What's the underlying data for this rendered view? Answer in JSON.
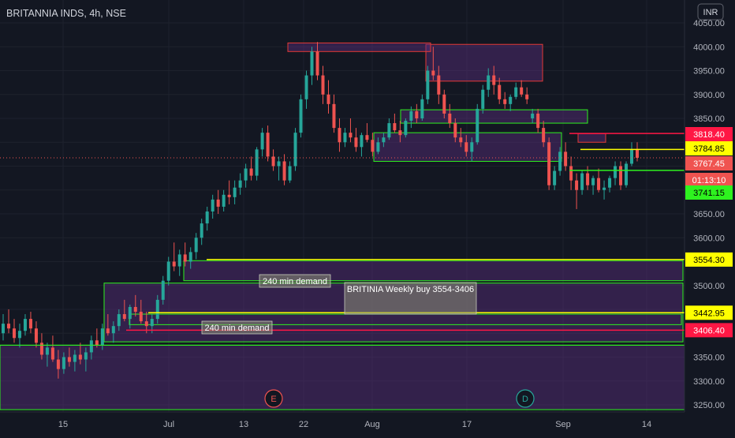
{
  "header": {
    "symbol": "BRITANNIA INDS",
    "interval": "4h",
    "exchange": "NSE",
    "currency": "INR"
  },
  "chart_data": {
    "type": "candlestick",
    "ylim": [
      3240,
      4060
    ],
    "y_ticks": [
      "3250.00",
      "3300.00",
      "3350.00",
      "3400.00",
      "3450.00",
      "3500.00",
      "3550.00",
      "3600.00",
      "3650.00",
      "3700.00",
      "3750.00",
      "3800.00",
      "3850.00",
      "3900.00",
      "3950.00",
      "4000.00",
      "4050.00"
    ],
    "x_ticks": [
      "15",
      "Jul",
      "13",
      "22",
      "Aug",
      "17",
      "Sep",
      "14"
    ],
    "colors": {
      "up": "#26a69a",
      "down": "#ef5350",
      "zone_fill": "#5c2e7e",
      "green_line": "#2ef21f",
      "yellow_line": "#ffff00",
      "red_line": "#ff1744",
      "zone_border_red": "#e53935"
    },
    "price_labels": [
      {
        "value": 3818.4,
        "text": "3818.40",
        "bg": "#ff1744",
        "fg": "#ffffff"
      },
      {
        "value": 3784.85,
        "text": "3784.85",
        "bg": "#ffff00",
        "fg": "#000000"
      },
      {
        "value": 3767.45,
        "text": "3767.45",
        "bg": "#ef5350",
        "fg": "#ffffff"
      },
      {
        "value": 3741.15,
        "text": "3741.15",
        "bg": "#2ef21f",
        "fg": "#000000"
      },
      {
        "value": 3554.3,
        "text": "3554.30",
        "bg": "#ffff00",
        "fg": "#000000"
      },
      {
        "value": 3442.95,
        "text": "3442.95",
        "bg": "#ffff00",
        "fg": "#000000"
      },
      {
        "value": 3406.4,
        "text": "3406.40",
        "bg": "#ff1744",
        "fg": "#ffffff"
      }
    ],
    "countdown": {
      "value": 3713,
      "text": "01:13:10"
    },
    "annotations": [
      {
        "text": "240 min demand"
      },
      {
        "text": "BRITINIA Weekly buy 3554-3406"
      },
      {
        "text": "240 min demand"
      }
    ],
    "events": [
      "E",
      "D"
    ],
    "candles": [
      [
        3400,
        3440,
        3385,
        3420
      ],
      [
        3420,
        3450,
        3400,
        3410
      ],
      [
        3410,
        3430,
        3380,
        3390
      ],
      [
        3390,
        3420,
        3370,
        3405
      ],
      [
        3405,
        3440,
        3395,
        3430
      ],
      [
        3430,
        3445,
        3400,
        3410
      ],
      [
        3410,
        3425,
        3370,
        3380
      ],
      [
        3380,
        3400,
        3345,
        3355
      ],
      [
        3355,
        3380,
        3330,
        3370
      ],
      [
        3370,
        3395,
        3340,
        3345
      ],
      [
        3345,
        3365,
        3305,
        3325
      ],
      [
        3325,
        3360,
        3315,
        3350
      ],
      [
        3350,
        3370,
        3330,
        3340
      ],
      [
        3340,
        3365,
        3320,
        3355
      ],
      [
        3355,
        3380,
        3335,
        3345
      ],
      [
        3345,
        3370,
        3320,
        3360
      ],
      [
        3360,
        3395,
        3345,
        3385
      ],
      [
        3385,
        3410,
        3370,
        3375
      ],
      [
        3375,
        3420,
        3365,
        3410
      ],
      [
        3410,
        3440,
        3395,
        3400
      ],
      [
        3400,
        3425,
        3380,
        3415
      ],
      [
        3415,
        3450,
        3405,
        3440
      ],
      [
        3440,
        3470,
        3425,
        3430
      ],
      [
        3430,
        3460,
        3410,
        3455
      ],
      [
        3455,
        3480,
        3435,
        3445
      ],
      [
        3445,
        3470,
        3420,
        3425
      ],
      [
        3425,
        3445,
        3400,
        3415
      ],
      [
        3415,
        3440,
        3400,
        3430
      ],
      [
        3430,
        3480,
        3420,
        3470
      ],
      [
        3470,
        3520,
        3460,
        3510
      ],
      [
        3510,
        3560,
        3500,
        3550
      ],
      [
        3550,
        3590,
        3530,
        3540
      ],
      [
        3540,
        3575,
        3520,
        3565
      ],
      [
        3565,
        3590,
        3540,
        3550
      ],
      [
        3550,
        3580,
        3535,
        3570
      ],
      [
        3570,
        3610,
        3555,
        3600
      ],
      [
        3600,
        3640,
        3585,
        3630
      ],
      [
        3630,
        3665,
        3615,
        3655
      ],
      [
        3655,
        3690,
        3640,
        3680
      ],
      [
        3680,
        3700,
        3650,
        3665
      ],
      [
        3665,
        3700,
        3655,
        3690
      ],
      [
        3690,
        3720,
        3670,
        3685
      ],
      [
        3685,
        3720,
        3670,
        3705
      ],
      [
        3705,
        3735,
        3690,
        3720
      ],
      [
        3720,
        3755,
        3705,
        3745
      ],
      [
        3745,
        3770,
        3720,
        3730
      ],
      [
        3730,
        3790,
        3720,
        3785
      ],
      [
        3785,
        3830,
        3770,
        3820
      ],
      [
        3820,
        3835,
        3760,
        3770
      ],
      [
        3770,
        3785,
        3740,
        3750
      ],
      [
        3750,
        3770,
        3720,
        3760
      ],
      [
        3760,
        3775,
        3710,
        3720
      ],
      [
        3720,
        3760,
        3715,
        3750
      ],
      [
        3750,
        3830,
        3740,
        3820
      ],
      [
        3820,
        3900,
        3810,
        3890
      ],
      [
        3890,
        3950,
        3870,
        3940
      ],
      [
        3940,
        4000,
        3920,
        3990
      ],
      [
        3990,
        4010,
        3930,
        3940
      ],
      [
        3940,
        3960,
        3880,
        3900
      ],
      [
        3900,
        3930,
        3860,
        3880
      ],
      [
        3880,
        3900,
        3820,
        3830
      ],
      [
        3830,
        3850,
        3780,
        3800
      ],
      [
        3800,
        3830,
        3790,
        3820
      ],
      [
        3820,
        3850,
        3800,
        3810
      ],
      [
        3810,
        3830,
        3780,
        3790
      ],
      [
        3790,
        3820,
        3770,
        3815
      ],
      [
        3815,
        3840,
        3800,
        3805
      ],
      [
        3805,
        3820,
        3770,
        3780
      ],
      [
        3780,
        3810,
        3775,
        3800
      ],
      [
        3800,
        3820,
        3790,
        3810
      ],
      [
        3810,
        3850,
        3805,
        3840
      ],
      [
        3840,
        3860,
        3820,
        3825
      ],
      [
        3825,
        3845,
        3800,
        3815
      ],
      [
        3815,
        3850,
        3810,
        3845
      ],
      [
        3845,
        3875,
        3830,
        3865
      ],
      [
        3865,
        3880,
        3840,
        3850
      ],
      [
        3850,
        3900,
        3845,
        3890
      ],
      [
        3890,
        3960,
        3880,
        3950
      ],
      [
        3950,
        4000,
        3930,
        3940
      ],
      [
        3940,
        3960,
        3880,
        3900
      ],
      [
        3900,
        3910,
        3850,
        3860
      ],
      [
        3860,
        3880,
        3830,
        3840
      ],
      [
        3840,
        3850,
        3800,
        3810
      ],
      [
        3810,
        3830,
        3790,
        3800
      ],
      [
        3800,
        3815,
        3770,
        3780
      ],
      [
        3780,
        3810,
        3760,
        3800
      ],
      [
        3800,
        3880,
        3795,
        3870
      ],
      [
        3870,
        3920,
        3860,
        3910
      ],
      [
        3910,
        3955,
        3895,
        3940
      ],
      [
        3940,
        3960,
        3900,
        3920
      ],
      [
        3920,
        3935,
        3880,
        3890
      ],
      [
        3890,
        3905,
        3870,
        3880
      ],
      [
        3880,
        3900,
        3865,
        3895
      ],
      [
        3895,
        3925,
        3890,
        3915
      ],
      [
        3915,
        3930,
        3895,
        3900
      ],
      [
        3900,
        3915,
        3880,
        3890
      ],
      [
        3850,
        3870,
        3840,
        3860
      ],
      [
        3860,
        3870,
        3820,
        3830
      ],
      [
        3830,
        3845,
        3790,
        3800
      ],
      [
        3800,
        3810,
        3700,
        3710
      ],
      [
        3710,
        3750,
        3700,
        3740
      ],
      [
        3740,
        3790,
        3730,
        3780
      ],
      [
        3780,
        3800,
        3740,
        3750
      ],
      [
        3750,
        3770,
        3700,
        3720
      ],
      [
        3720,
        3735,
        3660,
        3700
      ],
      [
        3700,
        3740,
        3690,
        3735
      ],
      [
        3735,
        3750,
        3700,
        3710
      ],
      [
        3710,
        3730,
        3690,
        3725
      ],
      [
        3725,
        3745,
        3695,
        3700
      ],
      [
        3700,
        3720,
        3680,
        3705
      ],
      [
        3705,
        3730,
        3695,
        3725
      ],
      [
        3725,
        3760,
        3710,
        3750
      ],
      [
        3750,
        3760,
        3700,
        3710
      ],
      [
        3710,
        3760,
        3705,
        3755
      ],
      [
        3755,
        3800,
        3750,
        3785
      ],
      [
        3785,
        3800,
        3760,
        3767.45
      ]
    ],
    "zones": [
      {
        "from": 3382,
        "to": 3505
      },
      {
        "from": 3510,
        "to": 3552
      },
      {
        "from": 3240,
        "to": 3375
      },
      {
        "from": 3760,
        "to": 3820
      },
      {
        "from": 3840,
        "to": 3868
      },
      {
        "from": 3928,
        "to": 4005
      },
      {
        "from": 3990,
        "to": 4008
      },
      {
        "from": 3800,
        "to": 3818
      }
    ]
  }
}
